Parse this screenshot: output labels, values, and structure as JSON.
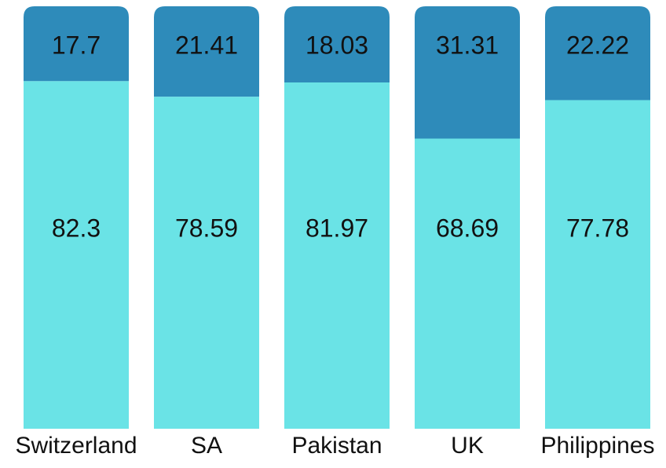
{
  "chart_data": {
    "type": "stacked-bar",
    "categories": [
      "Switzerland",
      "SA",
      "Pakistan",
      "UK",
      "Philippines"
    ],
    "series": [
      {
        "color": "#6ae3e6",
        "values": [
          82.3,
          78.59,
          81.97,
          68.69,
          77.78
        ]
      },
      {
        "color": "#2e8bba",
        "values": [
          17.7,
          21.41,
          18.03,
          31.31,
          22.22
        ]
      }
    ],
    "ylim": [
      0,
      100
    ]
  }
}
